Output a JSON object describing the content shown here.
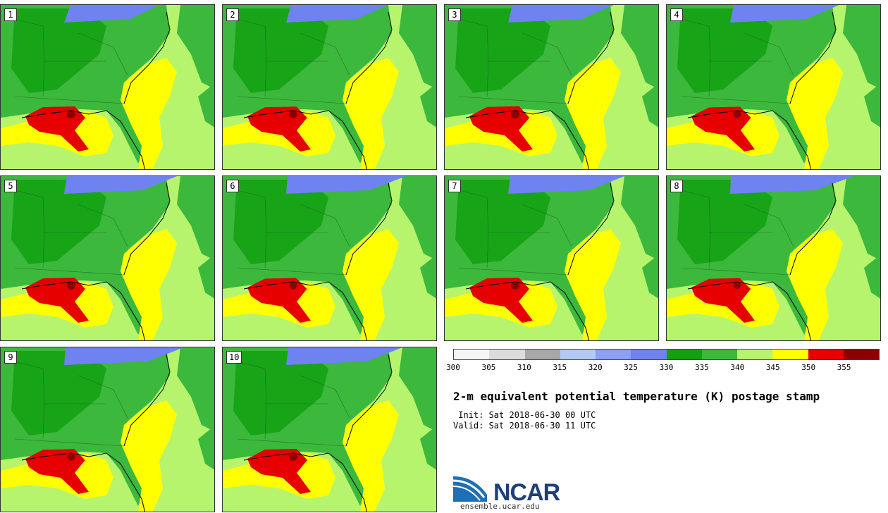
{
  "panels": [
    {
      "label": "1",
      "cold_fraction": 0.45,
      "hot_size": 1.0
    },
    {
      "label": "2",
      "cold_fraction": 0.55,
      "hot_size": 0.95
    },
    {
      "label": "3",
      "cold_fraction": 0.6,
      "hot_size": 1.05
    },
    {
      "label": "4",
      "cold_fraction": 0.65,
      "hot_size": 0.9
    },
    {
      "label": "5",
      "cold_fraction": 0.7,
      "hot_size": 1.0
    },
    {
      "label": "6",
      "cold_fraction": 0.8,
      "hot_size": 0.9
    },
    {
      "label": "7",
      "cold_fraction": 0.75,
      "hot_size": 1.0
    },
    {
      "label": "8",
      "cold_fraction": 0.85,
      "hot_size": 0.85
    },
    {
      "label": "9",
      "cold_fraction": 0.8,
      "hot_size": 0.95
    },
    {
      "label": "10",
      "cold_fraction": 0.75,
      "hot_size": 1.0
    }
  ],
  "colorbar": {
    "ticks": [
      "300",
      "305",
      "310",
      "315",
      "320",
      "325",
      "330",
      "335",
      "340",
      "345",
      "350",
      "355"
    ],
    "colors": [
      "#f5f5f5",
      "#dcdcdc",
      "#a8a8a8",
      "#b4c8f5",
      "#8ca0f5",
      "#6e82f0",
      "#10a010",
      "#3cb83c",
      "#b6f46e",
      "#ffff00",
      "#e60000",
      "#8c0000"
    ]
  },
  "map_colors": {
    "cold": "#6e82f0",
    "dark_green": "#10a010",
    "green": "#3cb83c",
    "light_green": "#b6f46e",
    "yellow": "#ffff00",
    "red": "#e60000",
    "dark_red": "#8c0000"
  },
  "title": "2-m equivalent potential temperature (K) postage stamp",
  "init_line": " Init: Sat 2018-06-30 00 UTC",
  "valid_line": "Valid: Sat 2018-06-30 11 UTC",
  "logo_text": "NCAR",
  "site": "ensemble.ucar.edu"
}
